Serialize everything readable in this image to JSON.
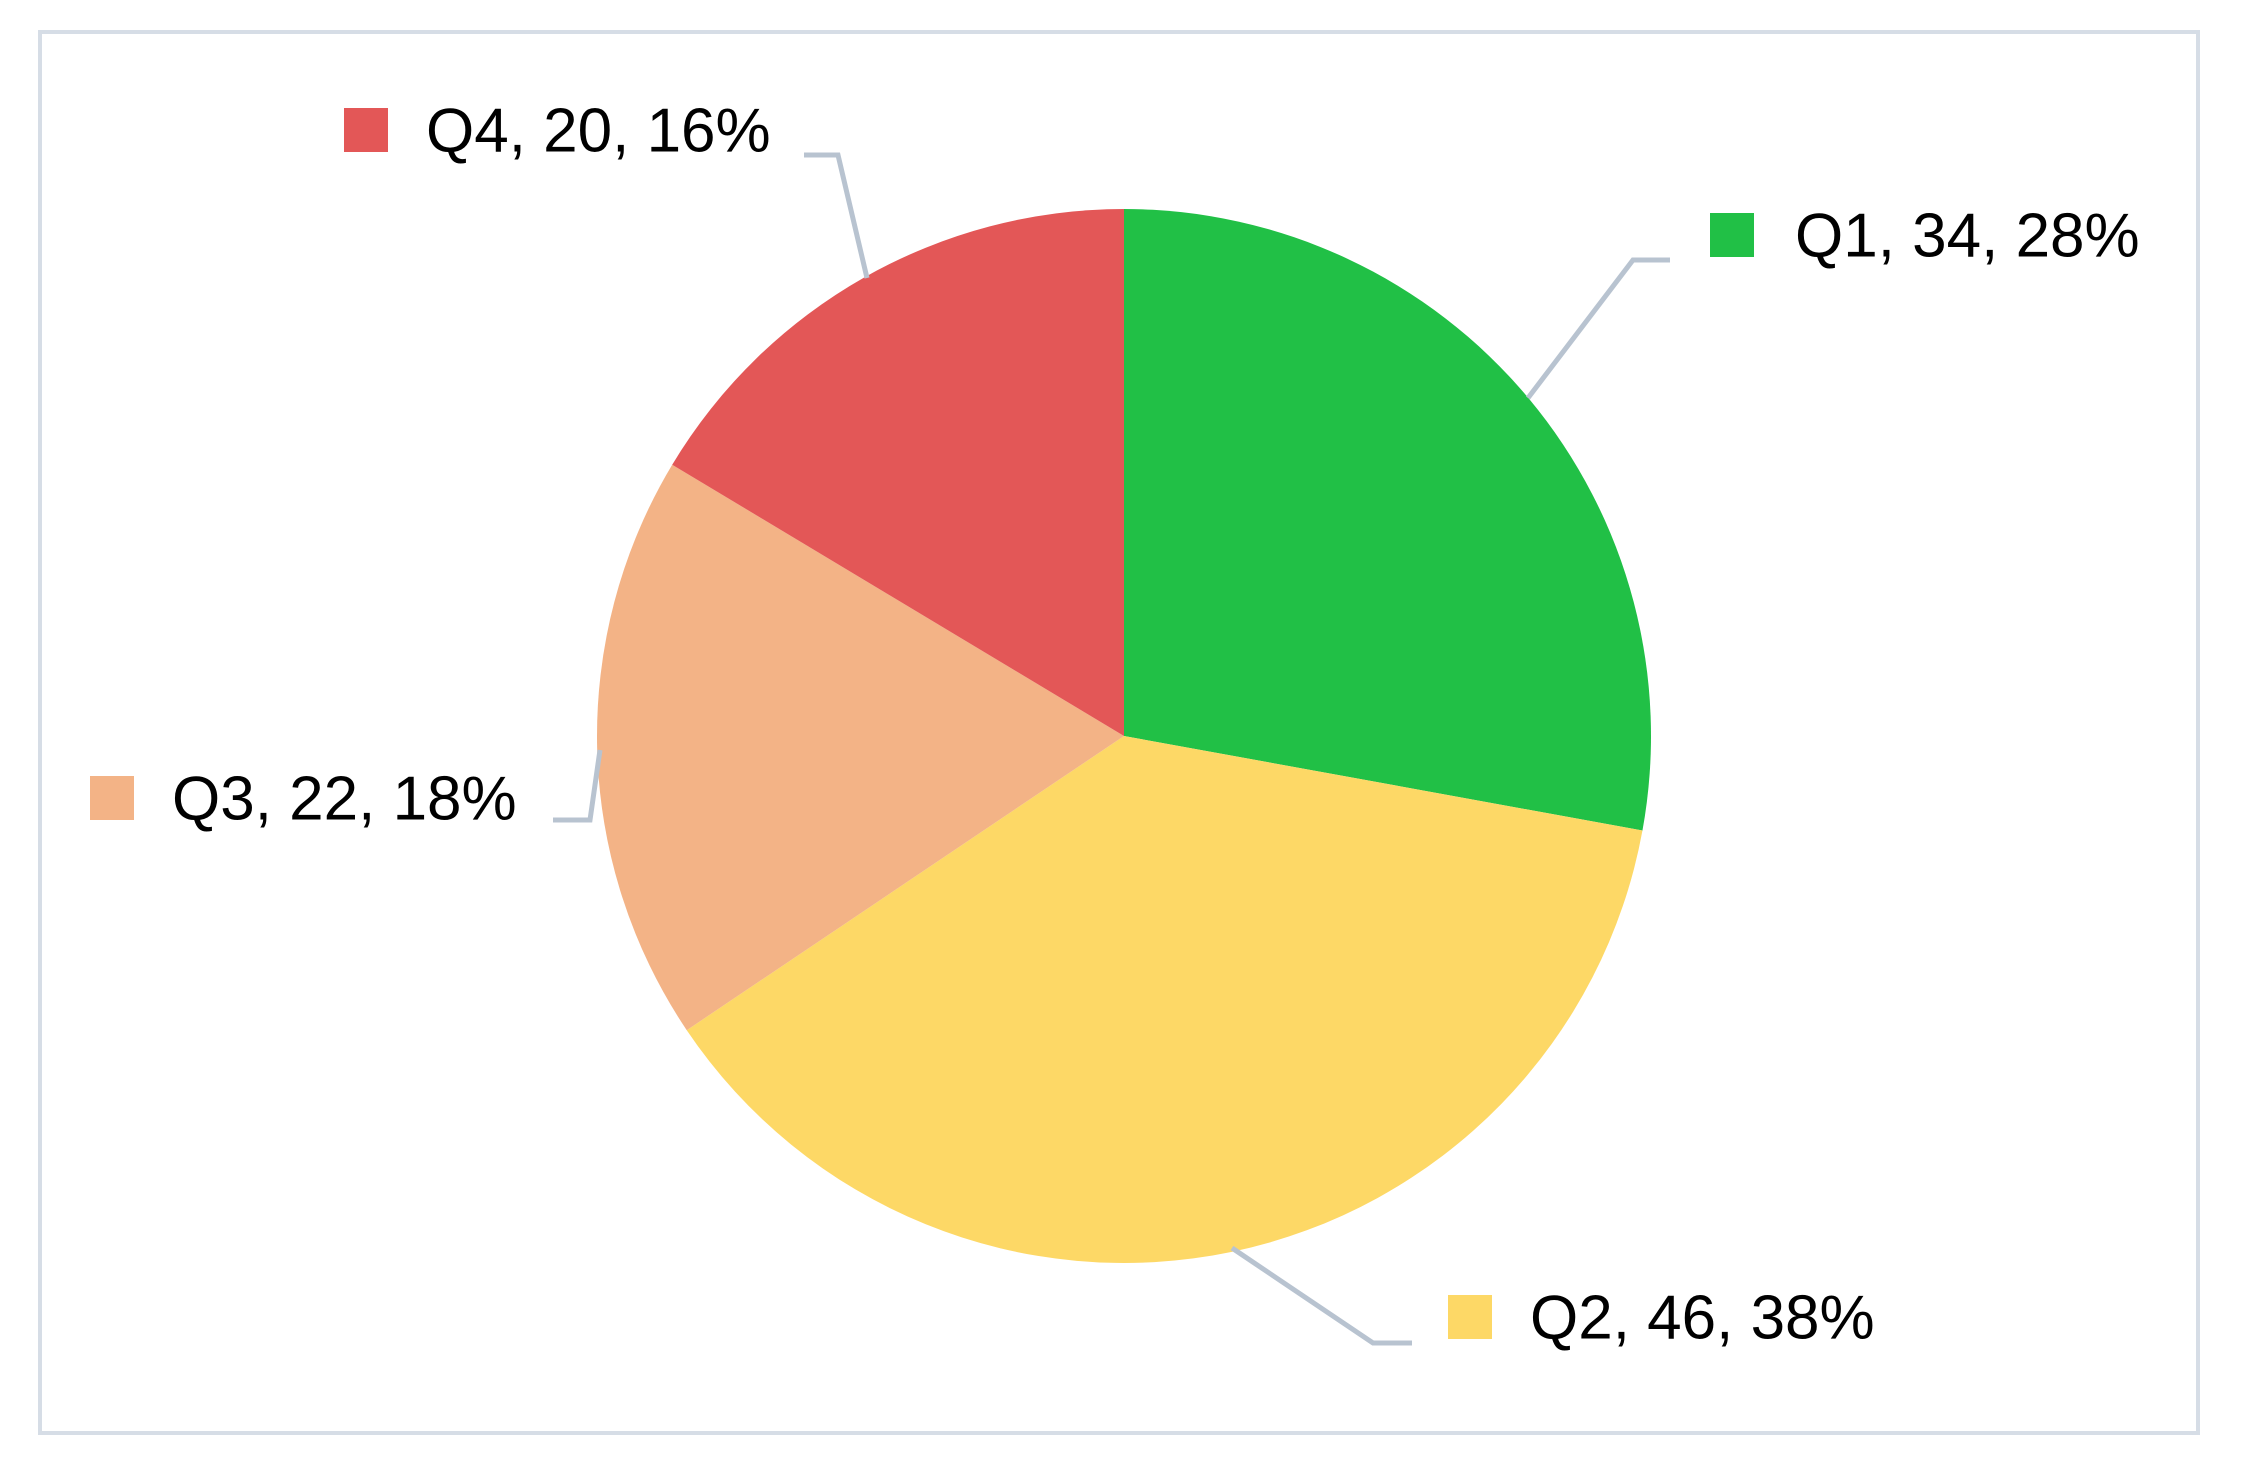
{
  "chart_data": {
    "type": "pie",
    "start_angle_deg": 0,
    "direction": "clockwise",
    "legend": "none",
    "slices": [
      {
        "label": "Q1",
        "value": 34,
        "percent": 28,
        "display": "Q1, 34, 28%",
        "color": "#21c046"
      },
      {
        "label": "Q2",
        "value": 46,
        "percent": 38,
        "display": "Q2, 46, 38%",
        "color": "#fdd866"
      },
      {
        "label": "Q3",
        "value": 22,
        "percent": 18,
        "display": "Q3, 22, 18%",
        "color": "#f3b386"
      },
      {
        "label": "Q4",
        "value": 20,
        "percent": 16,
        "display": "Q4, 20, 16%",
        "color": "#e35757"
      }
    ]
  },
  "colors": {
    "frame_border": "#d6dde6",
    "leader_line": "#b8c3d0",
    "background": "#ffffff"
  }
}
